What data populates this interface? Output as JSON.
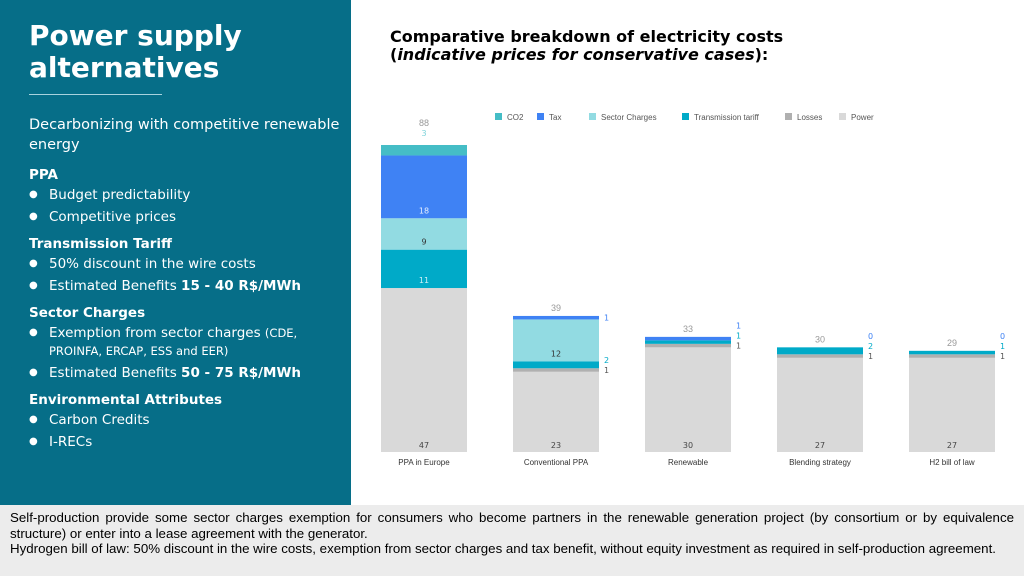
{
  "left": {
    "title_line1": "Power supply",
    "title_line2": "alternatives",
    "subtitle": "Decarbonizing with competitive renewable energy",
    "sections": [
      {
        "heading": "PPA",
        "items": [
          {
            "text": "Budget predictability"
          },
          {
            "text": "Competitive prices"
          }
        ]
      },
      {
        "heading": "Transmission Tariff",
        "items": [
          {
            "text": "50% discount in the wire costs"
          },
          {
            "text": "Estimated Benefits ",
            "bold": "15 - 40 R$/MWh"
          }
        ]
      },
      {
        "heading": "Sector Charges",
        "items": [
          {
            "text": "Exemption from sector charges ",
            "small": "(CDE, PROINFA, ERCAP, ESS and EER)"
          },
          {
            "text": "Estimated Benefits ",
            "bold": "50 - 75 R$/MWh"
          }
        ]
      },
      {
        "heading": "Environmental Attributes",
        "items": [
          {
            "text": "Carbon Credits"
          },
          {
            "text": "I-RECs"
          }
        ]
      }
    ]
  },
  "chart_title_line1": "Comparative breakdown of electricity costs",
  "chart_title_line2_open": "(",
  "chart_title_line2_italic": "indicative prices for conservative cases",
  "chart_title_line2_close": "):",
  "footer": {
    "line1": "Self-production provide some sector charges exemption for consumers who become partners in the renewable generation project (by consortium or by equivalence structure) or enter into a lease agreement with the generator.",
    "line2": "Hydrogen bill of law: 50% discount in the wire costs, exemption from sector charges and tax benefit, without equity investment as required in self-production agreement."
  },
  "chart_data": {
    "type": "bar",
    "stacked": true,
    "categories": [
      "PPA in Europe",
      "Conventional PPA",
      "Renewable",
      "Blending strategy",
      "H2 bill of law"
    ],
    "totals": [
      88,
      39,
      33,
      30,
      29
    ],
    "legend_position": "top",
    "series": [
      {
        "name": "Power",
        "color": "#d9d9d9",
        "label_color": "#444444",
        "values": [
          47,
          23,
          30,
          27,
          27
        ]
      },
      {
        "name": "Losses",
        "color": "#b0b0b0",
        "label_color": "#333333",
        "values": [
          0,
          1,
          1,
          1,
          1
        ]
      },
      {
        "name": "Transmission tariff",
        "color": "#00aac8",
        "label_color": "#cdeff5",
        "values": [
          11,
          2,
          1,
          2,
          1
        ]
      },
      {
        "name": "Sector Charges",
        "color": "#92dbe2",
        "label_color": "#333333",
        "values": [
          9,
          12,
          0,
          0,
          0
        ]
      },
      {
        "name": "Tax",
        "color": "#3f82f4",
        "label_color": "#e6efff",
        "values": [
          18,
          1,
          1,
          0,
          0
        ]
      },
      {
        "name": "CO2",
        "color": "#45bdc6",
        "label_color": "#7fd3da",
        "values": [
          3,
          0,
          0,
          0,
          0
        ]
      }
    ],
    "legend_order": [
      "CO2",
      "Tax",
      "Sector Charges",
      "Transmission tariff",
      "Losses",
      "Power"
    ],
    "grid": false
  }
}
